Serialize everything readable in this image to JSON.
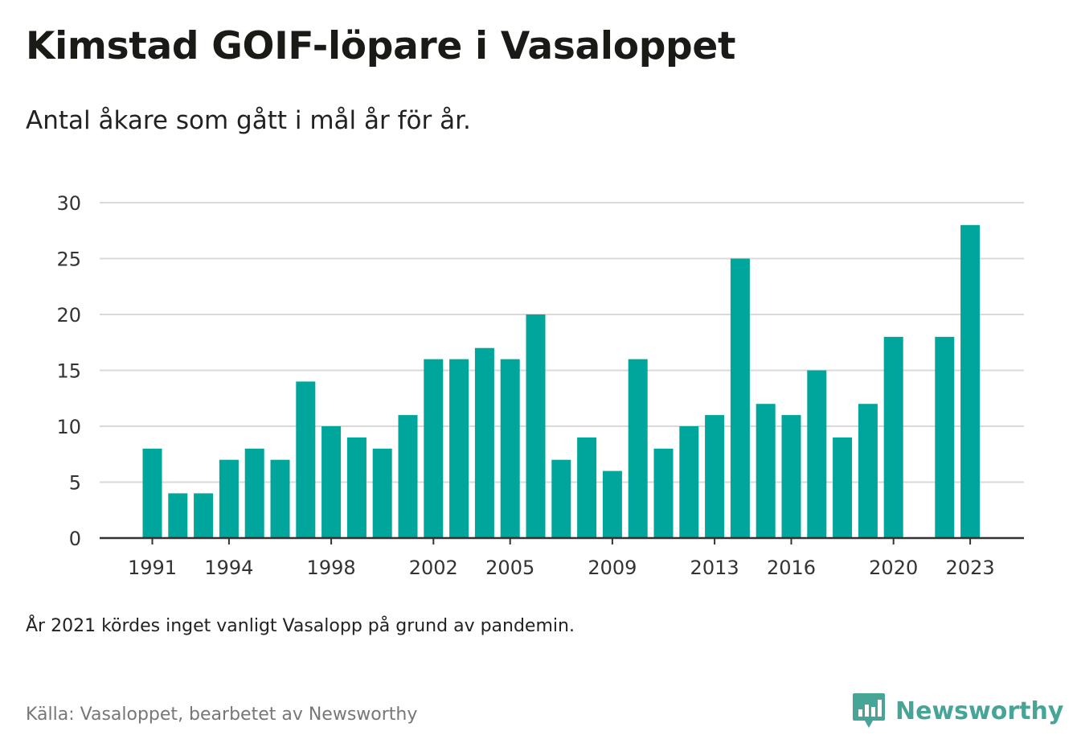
{
  "title": "Kimstad GOIF-löpare i Vasaloppet",
  "subtitle": "Antal åkare som gått i mål år för år.",
  "note": "År 2021 kördes inget vanligt Vasalopp på grund av pandemin.",
  "source": "Källa: Vasaloppet, bearbetet av Newsworthy",
  "brand": {
    "name": "Newsworthy",
    "icon": "newsworthy-logo-icon"
  },
  "colors": {
    "bar": "#00a59b",
    "grid": "#d9d9d9",
    "axis": "#333333",
    "brand": "#47a598"
  },
  "chart_data": {
    "type": "bar",
    "categories": [
      1991,
      1992,
      1993,
      1994,
      1995,
      1996,
      1997,
      1998,
      1999,
      2000,
      2001,
      2002,
      2003,
      2004,
      2005,
      2006,
      2007,
      2008,
      2009,
      2010,
      2011,
      2012,
      2013,
      2014,
      2015,
      2016,
      2017,
      2018,
      2019,
      2020,
      2021,
      2022,
      2023
    ],
    "values": [
      8,
      4,
      4,
      7,
      8,
      7,
      14,
      10,
      9,
      8,
      11,
      16,
      16,
      17,
      16,
      20,
      7,
      9,
      6,
      16,
      8,
      10,
      11,
      25,
      12,
      11,
      15,
      9,
      12,
      18,
      null,
      18,
      28
    ],
    "x_tick_labels": [
      "1991",
      "1994",
      "1998",
      "2002",
      "2005",
      "2009",
      "2013",
      "2016",
      "2020",
      "2023"
    ],
    "y_ticks": [
      0,
      5,
      10,
      15,
      20,
      25,
      30
    ],
    "ylim": [
      0,
      30
    ],
    "grid": true,
    "legend": "none"
  }
}
